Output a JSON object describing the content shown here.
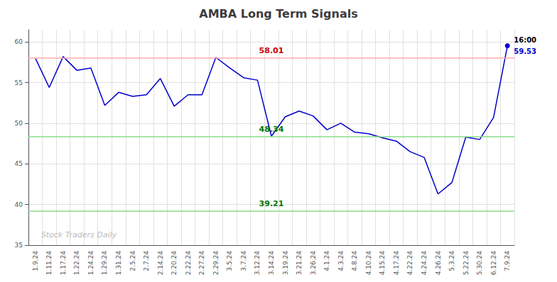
{
  "chart_data": {
    "type": "line",
    "title": "AMBA Long Term Signals",
    "categories": [
      "1.9.24",
      "1.11.24",
      "1.17.24",
      "1.22.24",
      "1.24.24",
      "1.29.24",
      "1.31.24",
      "2.5.24",
      "2.7.24",
      "2.14.24",
      "2.20.24",
      "2.22.24",
      "2.27.24",
      "2.29.24",
      "3.5.24",
      "3.7.24",
      "3.12.24",
      "3.14.24",
      "3.19.24",
      "3.21.24",
      "3.26.24",
      "4.1.24",
      "4.3.24",
      "4.8.24",
      "4.10.24",
      "4.15.24",
      "4.17.24",
      "4.22.24",
      "4.24.24",
      "4.26.24",
      "5.3.24",
      "5.22.24",
      "5.30.24",
      "6.12.24",
      "7.9.24"
    ],
    "values": [
      58.0,
      54.4,
      58.2,
      56.5,
      56.8,
      52.2,
      53.8,
      53.3,
      53.5,
      55.5,
      52.1,
      53.5,
      53.5,
      58.1,
      56.8,
      55.6,
      55.3,
      48.4,
      50.8,
      51.5,
      50.9,
      49.2,
      50.0,
      48.9,
      48.7,
      48.2,
      47.8,
      46.5,
      45.8,
      41.3,
      42.7,
      48.3,
      48.0,
      50.7,
      59.53
    ],
    "color": "#0000cc",
    "ylim": [
      35,
      61.5
    ],
    "yticks": [
      35,
      40,
      45,
      50,
      55,
      60
    ],
    "grid": true,
    "hlines": [
      {
        "value": 58.01,
        "label": "58.01",
        "color": "#ffaaaa",
        "label_color": "#cc0000"
      },
      {
        "value": 48.34,
        "label": "48.34",
        "color": "#88dd88",
        "label_color": "#007700"
      },
      {
        "value": 39.21,
        "label": "39.21",
        "color": "#88dd88",
        "label_color": "#007700"
      }
    ],
    "last_point_labels": [
      {
        "text": "16:00",
        "color": "#000000"
      },
      {
        "text": "59.53",
        "color": "#0000cc"
      }
    ],
    "watermark": {
      "text": "Stock Traders Daily",
      "color": "#bbbbbb"
    }
  }
}
